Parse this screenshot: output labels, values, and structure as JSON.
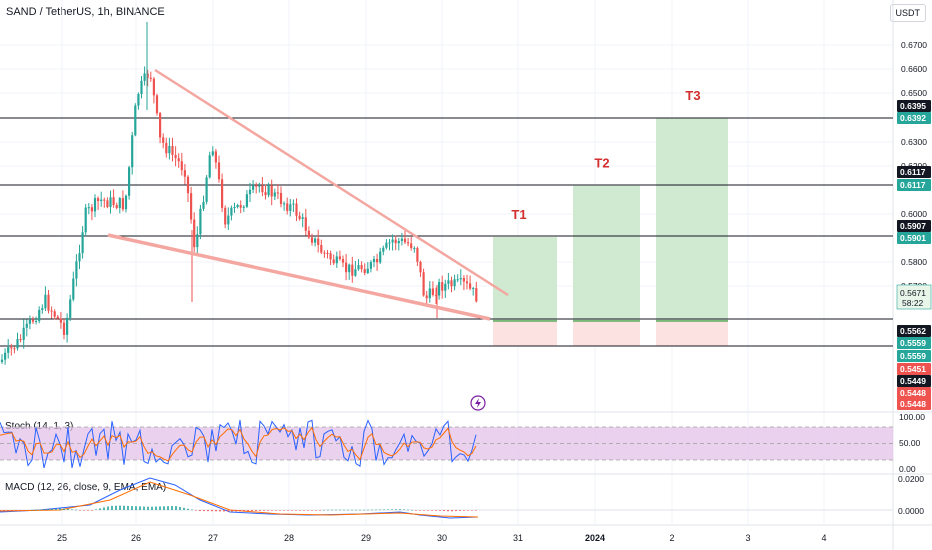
{
  "header": {
    "title": "SAND / TetherUS, 1h, BINANCE",
    "currency": "USDT"
  },
  "chart_data": {
    "type": "candlestick",
    "x_ticks": [
      "25",
      "26",
      "27",
      "28",
      "29",
      "30",
      "31",
      "2024",
      "2",
      "3",
      "4"
    ],
    "y_ticks": [
      "0.6700",
      "0.6600",
      "0.6500",
      "0.6300",
      "0.6200",
      "0.6000",
      "0.5800",
      "0.5700"
    ],
    "current_price": "0.5671",
    "countdown": "58:22",
    "horizontal_levels": [
      0.6395,
      0.6117,
      0.5907,
      0.5562,
      0.5448
    ],
    "price_tags": [
      {
        "label": "0.6395",
        "price": 0.6395,
        "color": "#131722"
      },
      {
        "label": "0.6392",
        "price": 0.6392,
        "color": "#26a69a"
      },
      {
        "label": "0.6117",
        "price": 0.6117,
        "color": "#131722"
      },
      {
        "label": "0.6117",
        "price": 0.6117,
        "color": "#26a69a"
      },
      {
        "label": "0.5907",
        "price": 0.5907,
        "color": "#131722"
      },
      {
        "label": "0.5901",
        "price": 0.5901,
        "color": "#26a69a"
      },
      {
        "label": "0.5562",
        "price": 0.5562,
        "color": "#131722"
      },
      {
        "label": "0.5559",
        "price": 0.5559,
        "color": "#26a69a"
      },
      {
        "label": "0.5559",
        "price": 0.5559,
        "color": "#26a69a"
      },
      {
        "label": "0.5451",
        "price": 0.5451,
        "color": "#ef5350"
      },
      {
        "label": "0.5449",
        "price": 0.5449,
        "color": "#131722"
      },
      {
        "label": "0.5448",
        "price": 0.5448,
        "color": "#ef5350"
      },
      {
        "label": "0.5448",
        "price": 0.5448,
        "color": "#ef5350"
      }
    ],
    "targets": [
      {
        "label": "T1",
        "top": 0.5907,
        "entry": 0.5562,
        "stop": 0.5449
      },
      {
        "label": "T2",
        "top": 0.6117,
        "entry": 0.5562,
        "stop": 0.5449
      },
      {
        "label": "T3",
        "top": 0.6395,
        "entry": 0.5562,
        "stop": 0.5449
      }
    ],
    "wedge": {
      "upper": [
        [
          0.66
        ],
        [
          0.574
        ]
      ],
      "lower": [
        [
          0.5907
        ],
        [
          0.5562
        ]
      ]
    },
    "colors": {
      "up": "#26a69a",
      "down": "#ef5350",
      "wedge": "#f4a6a0",
      "target_fill": "#c8e6c9",
      "stop_fill": "#fde2e2",
      "stoch_band": "#e1bee7",
      "stoch_k": "#2962ff",
      "stoch_d": "#ff6d00",
      "macd": "#2962ff",
      "signal": "#ff6d00"
    },
    "stoch": {
      "label": "Stoch (14, 1, 3)",
      "y_ticks": [
        "100.00",
        "50.00",
        "0.00"
      ],
      "upper_band": 80,
      "lower_band": 20
    },
    "macd": {
      "label": "MACD (12, 26, close, 9, EMA, EMA)",
      "y_ticks": [
        "0.0200",
        "0.0000"
      ]
    }
  }
}
